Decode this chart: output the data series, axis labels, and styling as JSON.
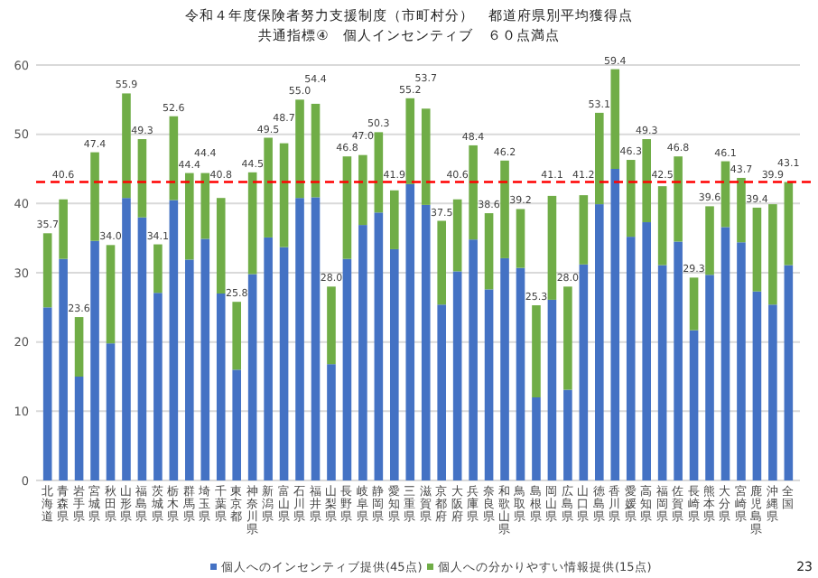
{
  "chart_data": {
    "type": "bar",
    "title": "令和４年度保険者努力支援制度（市町村分）　都道府県別平均獲得点",
    "subtitle": "共通指標④　個人インセンティブ　６０点満点",
    "categories": [
      "北海道",
      "青森県",
      "岩手県",
      "宮城県",
      "秋田県",
      "山形県",
      "福島県",
      "茨城県",
      "栃木県",
      "群馬県",
      "埼玉県",
      "千葉県",
      "東京都",
      "神奈川県",
      "新潟県",
      "富山県",
      "石川県",
      "福井県",
      "山梨県",
      "長野県",
      "岐阜県",
      "静岡県",
      "愛知県",
      "三重県",
      "滋賀県",
      "京都府",
      "大阪府",
      "兵庫県",
      "奈良県",
      "和歌山県",
      "鳥取県",
      "島根県",
      "岡山県",
      "広島県",
      "山口県",
      "徳島県",
      "香川県",
      "愛媛県",
      "高知県",
      "福岡県",
      "佐賀県",
      "長崎県",
      "熊本県",
      "大分県",
      "宮崎県",
      "鹿児島県",
      "沖縄県",
      "全国"
    ],
    "stacked": true,
    "series": [
      {
        "name": "個人へのインセンティブ提供(45点)",
        "color": "#4472c4",
        "values": [
          25.0,
          32.0,
          15.0,
          34.6,
          19.8,
          40.8,
          38.0,
          27.1,
          40.5,
          31.9,
          34.9,
          27.0,
          16.0,
          29.8,
          35.1,
          33.7,
          40.8,
          40.9,
          16.8,
          32.0,
          36.9,
          38.7,
          33.4,
          42.8,
          39.8,
          25.4,
          30.2,
          34.8,
          27.6,
          32.1,
          30.7,
          12.0,
          26.1,
          13.1,
          31.2,
          39.9,
          45.0,
          35.2,
          37.3,
          31.1,
          34.5,
          21.7,
          29.7,
          36.6,
          34.4,
          27.3,
          25.4,
          31.1
        ]
      },
      {
        "name": "個人への分かりやすい情報提供(15点)",
        "color": "#70ad47",
        "values": [
          10.7,
          8.6,
          8.6,
          12.8,
          14.2,
          15.1,
          11.3,
          7.0,
          12.1,
          12.5,
          9.5,
          13.8,
          9.8,
          14.7,
          14.4,
          15.0,
          14.2,
          13.5,
          11.2,
          14.8,
          10.1,
          11.6,
          8.5,
          12.4,
          13.9,
          12.1,
          10.4,
          13.6,
          11.0,
          14.1,
          8.5,
          13.3,
          15.0,
          14.9,
          10.0,
          13.2,
          14.4,
          11.1,
          12.0,
          11.4,
          12.3,
          7.6,
          9.9,
          9.5,
          9.3,
          12.1,
          14.5,
          12.0
        ]
      }
    ],
    "totals": [
      "35.7",
      "40.6",
      "23.6",
      "47.4",
      "34.0",
      "55.9",
      "49.3",
      "34.1",
      "52.6",
      "44.4",
      "44.4",
      "40.8",
      "25.8",
      "44.5",
      "49.5",
      "48.7",
      "55.0",
      "54.4",
      "28.0",
      "46.8",
      "47.0",
      "50.3",
      "41.9",
      "55.2",
      "53.7",
      "37.5",
      "40.6",
      "48.4",
      "38.6",
      "46.2",
      "39.2",
      "25.3",
      "41.1",
      "28.0",
      "41.2",
      "53.1",
      "59.4",
      "46.3",
      "49.3",
      "42.5",
      "46.8",
      "29.3",
      "39.6",
      "46.1",
      "43.7",
      "39.4",
      "39.9",
      "43.1"
    ],
    "ylim": [
      0,
      60
    ],
    "yticks": [
      0,
      10,
      20,
      30,
      40,
      50,
      60
    ],
    "grid": "y",
    "legend": "bottom",
    "ref_lines": [
      {
        "axis": "y",
        "value": 43.1,
        "color": "#ff0000",
        "line_style": "dashed"
      }
    ],
    "annotations": [
      "23"
    ]
  }
}
